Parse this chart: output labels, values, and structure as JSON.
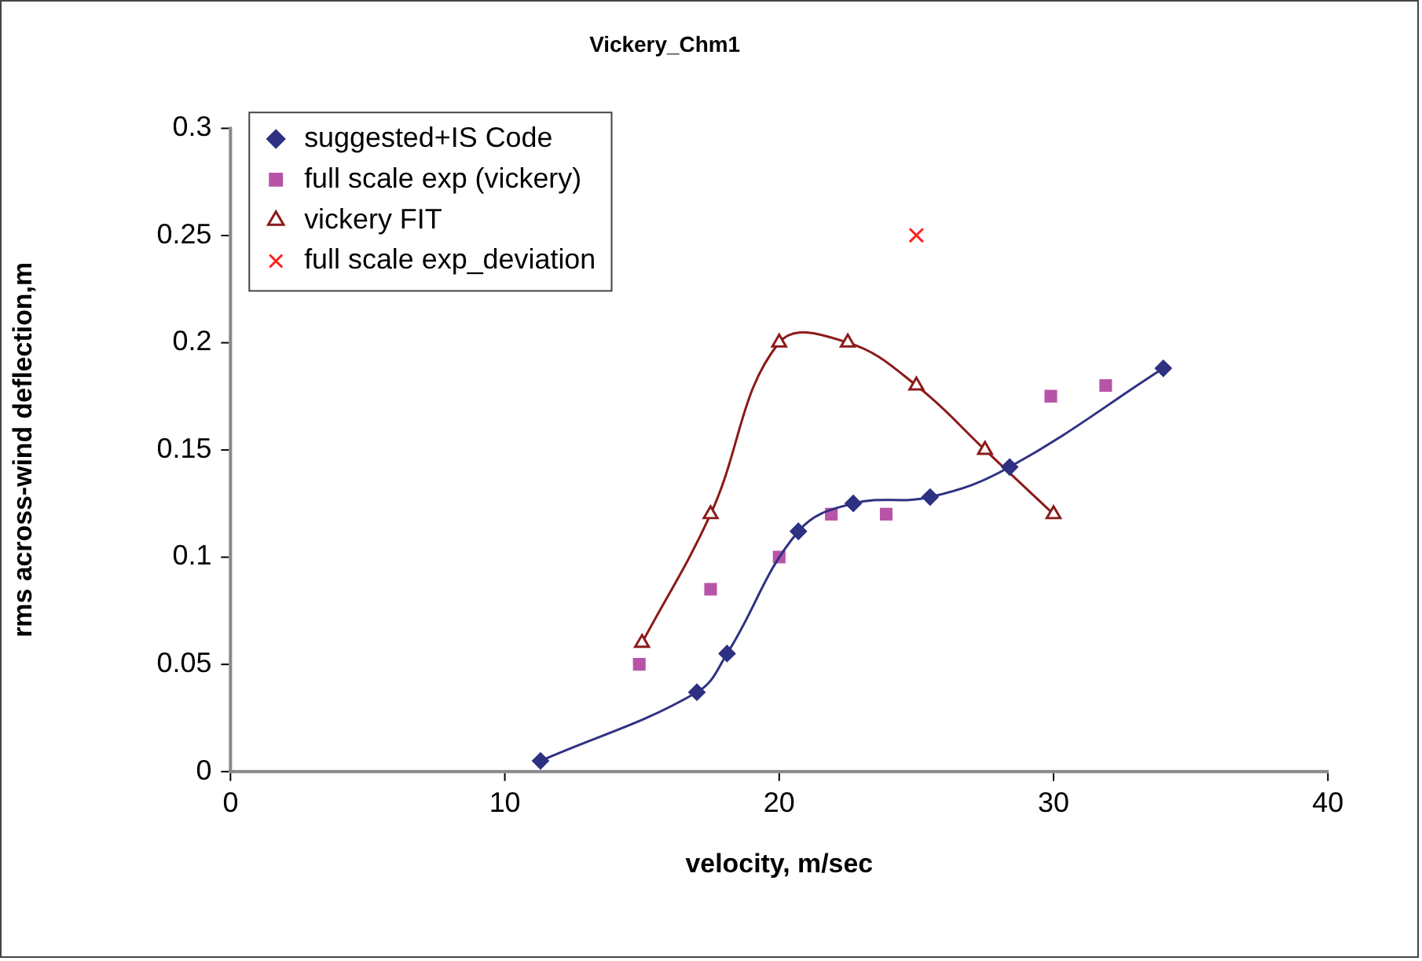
{
  "chart_data": {
    "type": "line",
    "title": "Vickery_Chm1",
    "xlabel": "velocity, m/sec",
    "ylabel": "rms across-wind deflection,m",
    "xlim": [
      0,
      40
    ],
    "xticks": [
      0,
      10,
      20,
      30,
      40
    ],
    "ylim": [
      0,
      0.3
    ],
    "yticks": [
      0,
      0.05,
      0.1,
      0.15,
      0.2,
      0.25,
      0.3
    ],
    "grid": false,
    "legend": "top left",
    "series": [
      {
        "name": "suggested+IS Code",
        "marker": "diamond",
        "color": "#2e3182",
        "x": [
          11.3,
          17.0,
          18.1,
          20.7,
          22.7,
          25.5,
          28.4,
          34.0
        ],
        "values": [
          0.005,
          0.037,
          0.055,
          0.112,
          0.125,
          0.128,
          0.142,
          0.188
        ]
      },
      {
        "name": "full scale exp (vickery)",
        "type": "scatter",
        "marker": "square",
        "color": "#b854a8",
        "x": [
          14.9,
          17.5,
          20.0,
          21.9,
          23.9,
          29.9,
          31.9
        ],
        "values": [
          0.05,
          0.085,
          0.1,
          0.12,
          0.12,
          0.175,
          0.18
        ]
      },
      {
        "name": "vickery FIT",
        "marker": "triangle",
        "color": "#8b1a1a",
        "x": [
          15,
          17.5,
          20,
          22.5,
          25,
          27.5,
          30
        ],
        "values": [
          0.06,
          0.12,
          0.2,
          0.2,
          0.18,
          0.15,
          0.12
        ]
      },
      {
        "name": "full scale exp_deviation",
        "type": "scatter",
        "marker": "cross",
        "color": "#ff2020",
        "x": [
          25
        ],
        "values": [
          0.25
        ]
      }
    ]
  }
}
